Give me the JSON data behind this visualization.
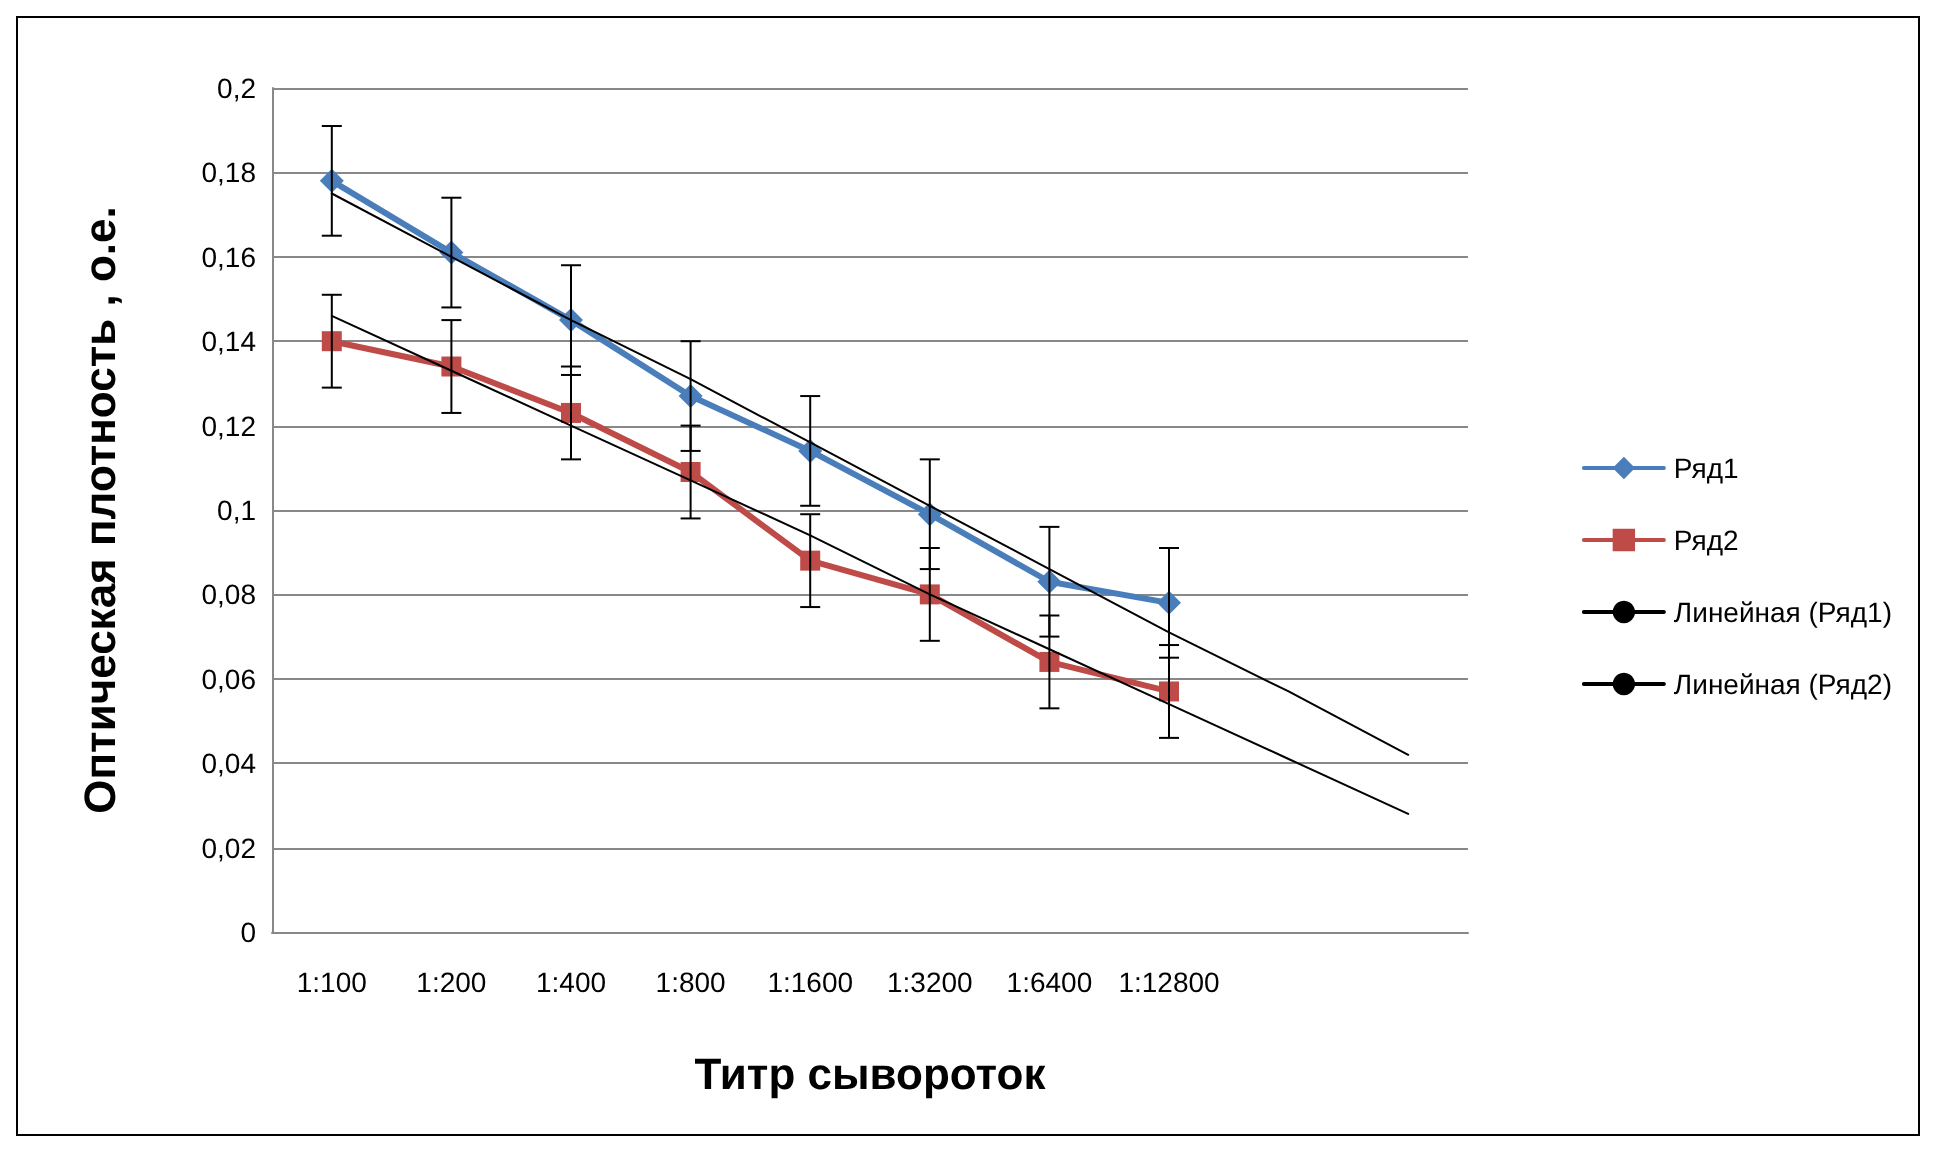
{
  "chart_data": {
    "type": "line",
    "xlabel": "Титр сывороток",
    "ylabel": "Оптическая плотность , о.е.",
    "categories": [
      "1:100",
      "1:200",
      "1:400",
      "1:800",
      "1:1600",
      "1:3200",
      "1:6400",
      "1:12800",
      null,
      null
    ],
    "series": [
      {
        "name": "Ряд1",
        "color": "#4a7ebb",
        "marker": "diamond",
        "values": [
          0.178,
          0.161,
          0.145,
          0.127,
          0.114,
          0.099,
          0.083,
          0.078,
          null,
          null
        ],
        "errors": [
          0.013,
          0.013,
          0.013,
          0.013,
          0.013,
          0.013,
          0.013,
          0.013,
          null,
          null
        ]
      },
      {
        "name": "Ряд2",
        "color": "#be4b48",
        "marker": "square",
        "values": [
          0.14,
          0.134,
          0.123,
          0.109,
          0.088,
          0.08,
          0.064,
          0.057,
          null,
          null
        ],
        "errors": [
          0.011,
          0.011,
          0.011,
          0.011,
          0.011,
          0.011,
          0.011,
          0.011,
          null,
          null
        ]
      },
      {
        "name": "Линейная (Ряд1)",
        "color": "#000000",
        "marker": "none",
        "values": [
          0.175,
          0.16,
          0.145,
          0.131,
          0.116,
          0.101,
          0.086,
          0.071,
          0.057,
          0.042
        ]
      },
      {
        "name": "Линейная (Ряд2)",
        "color": "#000000",
        "marker": "none",
        "values": [
          0.146,
          0.133,
          0.12,
          0.107,
          0.094,
          0.08,
          0.067,
          0.054,
          0.041,
          0.028
        ]
      }
    ],
    "ylim": [
      0,
      0.2
    ],
    "yticks": [
      {
        "value": 0,
        "label": "0"
      },
      {
        "value": 0.02,
        "label": "0,02"
      },
      {
        "value": 0.04,
        "label": "0,04"
      },
      {
        "value": 0.06,
        "label": "0,06"
      },
      {
        "value": 0.08,
        "label": "0,08"
      },
      {
        "value": 0.1,
        "label": "0,1"
      },
      {
        "value": 0.12,
        "label": "0,12"
      },
      {
        "value": 0.14,
        "label": "0,14"
      },
      {
        "value": 0.16,
        "label": "0,16"
      },
      {
        "value": 0.18,
        "label": "0,18"
      },
      {
        "value": 0.2,
        "label": "0,2"
      }
    ],
    "grid": "y",
    "legend": "right"
  }
}
